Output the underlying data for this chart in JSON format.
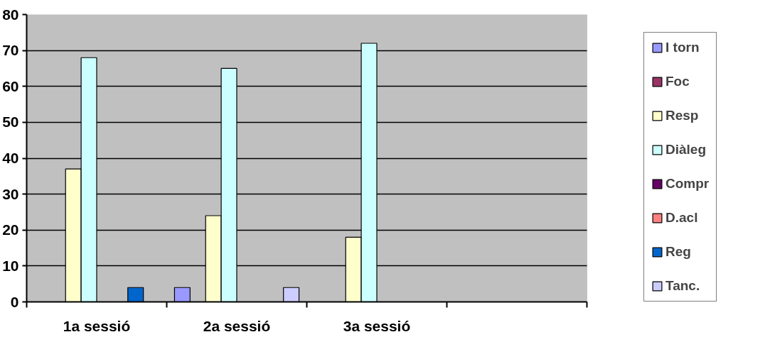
{
  "chart_data": {
    "type": "bar",
    "categories": [
      "1a sessió",
      "2a sessió",
      "3a sessió",
      null
    ],
    "series": [
      {
        "name": "I torn",
        "color": "#9999ff",
        "values": [
          null,
          4,
          null,
          null
        ]
      },
      {
        "name": "Foc",
        "color": "#993366",
        "values": [
          null,
          null,
          null,
          null
        ]
      },
      {
        "name": "Resp",
        "color": "#ffffcc",
        "values": [
          37,
          24,
          18,
          null
        ]
      },
      {
        "name": "Diàleg",
        "color": "#ccffff",
        "values": [
          68,
          65,
          72,
          null
        ]
      },
      {
        "name": "Compr",
        "color": "#660066",
        "values": [
          null,
          null,
          null,
          null
        ]
      },
      {
        "name": "D.acl",
        "color": "#ff8080",
        "values": [
          null,
          null,
          null,
          null
        ]
      },
      {
        "name": "Reg",
        "color": "#0066cc",
        "values": [
          4,
          null,
          null,
          null
        ]
      },
      {
        "name": "Tanc.",
        "color": "#ccccff",
        "values": [
          null,
          4,
          null,
          null
        ]
      }
    ],
    "ylim": [
      0,
      80
    ],
    "yticks": [
      0,
      10,
      20,
      30,
      40,
      50,
      60,
      70,
      80
    ],
    "grid": "y",
    "legend": "right"
  }
}
